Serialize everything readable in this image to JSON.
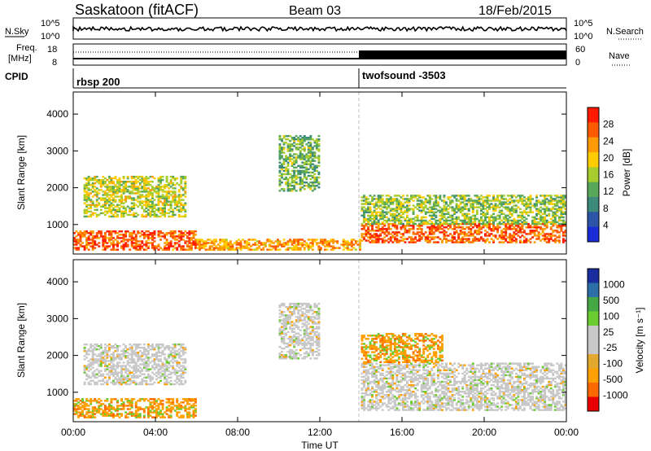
{
  "header": {
    "title": "Saskatoon (fitACF)",
    "beam": "Beam 03",
    "date": "18/Feb/2015"
  },
  "status_panels": {
    "nsky_label": "N.Sky",
    "nsky_ticks": [
      "10^5",
      "10^0"
    ],
    "nsearch_label": "N.Search",
    "nsearch_ticks": [
      "10^5",
      "10^0"
    ],
    "freq_label": "Freq.",
    "freq_unit": "[MHz]",
    "freq_ticks": [
      "18",
      "8"
    ],
    "nave_label": "Nave",
    "nave_ticks": [
      "60",
      "0"
    ],
    "cpid_label": "CPID",
    "cpid_modes": [
      {
        "name": "rbsp 200",
        "start_hour": 0
      },
      {
        "name": "twofsound -3503",
        "start_hour": 14.05
      }
    ]
  },
  "colors": {
    "power_scale": [
      "#1a2cd6",
      "#2c55a8",
      "#3d8a7a",
      "#59a85a",
      "#a6cc2e",
      "#ffcc00",
      "#ff9a00",
      "#ff5a00",
      "#ff1a00"
    ],
    "velocity_scale": [
      "#e80000",
      "#ff6a00",
      "#ffa000",
      "#e2a830",
      "#c8c8c8",
      "#c8c8c8",
      "#6acc2e",
      "#45a845",
      "#2c6ea8",
      "#1a2c9e"
    ]
  },
  "chart_data": [
    {
      "type": "heatmap",
      "panel": "power",
      "ylabel": "Slant Range [km]",
      "yticks": [
        "1000",
        "2000",
        "3000",
        "4000"
      ],
      "ylim": [
        200,
        4600
      ],
      "xlim": [
        0,
        24
      ],
      "colorbar_label": "Power [dB]",
      "colorbar_ticks": [
        "4",
        "8",
        "12",
        "16",
        "20",
        "24",
        "28"
      ],
      "colorbar_range": [
        0,
        30
      ],
      "features": [
        {
          "hours": [
            0,
            6
          ],
          "range_km": [
            300,
            800
          ],
          "value_db": 26
        },
        {
          "hours": [
            0.5,
            5.5
          ],
          "range_km": [
            1200,
            2300
          ],
          "value_db": 16
        },
        {
          "hours": [
            10,
            12
          ],
          "range_km": [
            1900,
            3400
          ],
          "value_db": 12
        },
        {
          "hours": [
            6,
            14
          ],
          "range_km": [
            300,
            600
          ],
          "value_db": 22
        },
        {
          "hours": [
            14,
            24
          ],
          "range_km": [
            500,
            1000
          ],
          "value_db": 26
        },
        {
          "hours": [
            14,
            24
          ],
          "range_km": [
            1000,
            1800
          ],
          "value_db": 14
        }
      ]
    },
    {
      "type": "heatmap",
      "panel": "velocity",
      "ylabel": "Slant Range [km]",
      "yticks": [
        "1000",
        "2000",
        "3000",
        "4000"
      ],
      "ylim": [
        200,
        4600
      ],
      "xlim": [
        0,
        24
      ],
      "xlabel": "Time UT",
      "xticks": [
        "00:00",
        "04:00",
        "08:00",
        "12:00",
        "16:00",
        "20:00",
        "00:00"
      ],
      "colorbar_label": "Velocity [m s⁻¹]",
      "colorbar_ticks": [
        "1000",
        "500",
        "100",
        "25",
        "-25",
        "-100",
        "-500",
        "-1000"
      ],
      "features": [
        {
          "hours": [
            0,
            6
          ],
          "range_km": [
            300,
            800
          ],
          "velocity": -150
        },
        {
          "hours": [
            0.5,
            5.5
          ],
          "range_km": [
            1200,
            2300
          ],
          "velocity": 0
        },
        {
          "hours": [
            10,
            12
          ],
          "range_km": [
            1900,
            3400
          ],
          "velocity": 0
        },
        {
          "hours": [
            14,
            24
          ],
          "range_km": [
            500,
            1800
          ],
          "velocity": 0
        },
        {
          "hours": [
            14,
            18
          ],
          "range_km": [
            1800,
            2600
          ],
          "velocity": -150
        }
      ]
    }
  ]
}
